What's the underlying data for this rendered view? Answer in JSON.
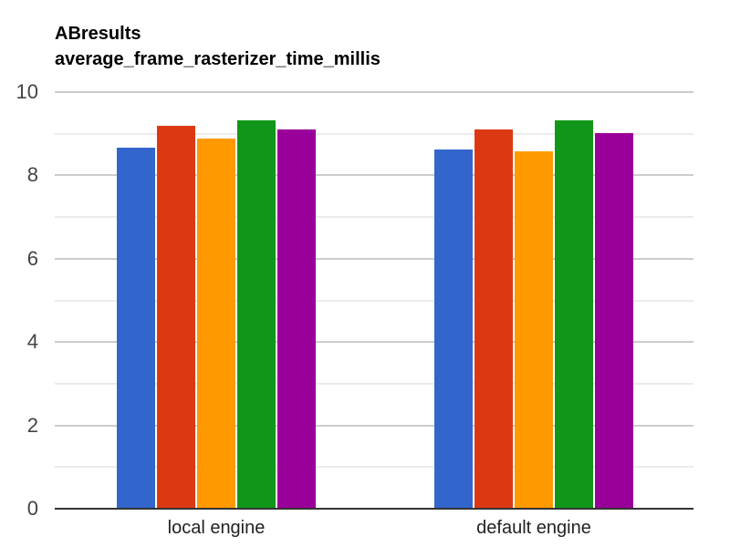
{
  "title": {
    "line1": "ABresults",
    "line2": "average_frame_rasterizer_time_millis"
  },
  "y_axis": {
    "ticks": [
      "0",
      "2",
      "4",
      "6",
      "8",
      "10"
    ]
  },
  "x_axis": {
    "categories": [
      "local engine",
      "default engine"
    ]
  },
  "colors": [
    "#3366CC",
    "#DC3912",
    "#FF9900",
    "#109618",
    "#990099"
  ],
  "chart_data": {
    "type": "bar",
    "title": "ABresults average_frame_rasterizer_time_millis",
    "xlabel": "",
    "ylabel": "",
    "categories": [
      "local engine",
      "default engine"
    ],
    "series": [
      {
        "name": "series 1",
        "color": "#3366CC",
        "values": [
          8.67,
          8.62
        ]
      },
      {
        "name": "series 2",
        "color": "#DC3912",
        "values": [
          9.19,
          9.1
        ]
      },
      {
        "name": "series 3",
        "color": "#FF9900",
        "values": [
          8.88,
          8.58
        ]
      },
      {
        "name": "series 4",
        "color": "#109618",
        "values": [
          9.32,
          9.32
        ]
      },
      {
        "name": "series 5",
        "color": "#990099",
        "values": [
          9.1,
          9.02
        ]
      }
    ],
    "ylim": [
      0,
      10
    ],
    "yticks": [
      0,
      2,
      4,
      6,
      8,
      10
    ],
    "grid": true,
    "legend": "none"
  }
}
